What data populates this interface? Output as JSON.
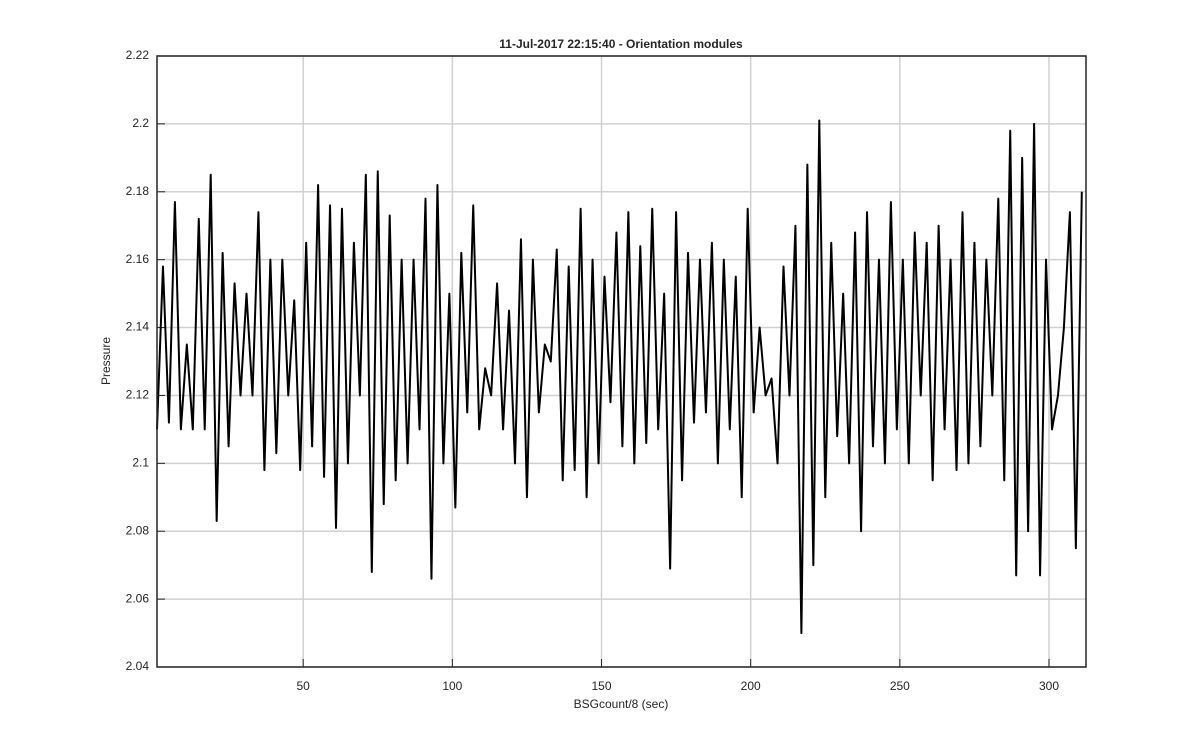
{
  "chart_data": {
    "type": "line",
    "title": "11-Jul-2017 22:15:40 - Orientation modules",
    "xlabel": "BSGcount/8 (sec)",
    "ylabel": "Pressure",
    "x": [
      1,
      3,
      5,
      7,
      9,
      11,
      13,
      15,
      17,
      19,
      21,
      23,
      25,
      27,
      29,
      31,
      33,
      35,
      37,
      39,
      41,
      43,
      45,
      47,
      49,
      51,
      53,
      55,
      57,
      59,
      61,
      63,
      65,
      67,
      69,
      71,
      73,
      75,
      77,
      79,
      81,
      83,
      85,
      87,
      89,
      91,
      93,
      95,
      97,
      99,
      101,
      103,
      105,
      107,
      109,
      111,
      113,
      115,
      117,
      119,
      121,
      123,
      125,
      127,
      129,
      131,
      133,
      135,
      137,
      139,
      141,
      143,
      145,
      147,
      149,
      151,
      153,
      155,
      157,
      159,
      161,
      163,
      165,
      167,
      169,
      171,
      173,
      175,
      177,
      179,
      181,
      183,
      185,
      187,
      189,
      191,
      193,
      195,
      197,
      199,
      201,
      203,
      205,
      207,
      209,
      211,
      213,
      215,
      217,
      219,
      221,
      223,
      225,
      227,
      229,
      231,
      233,
      235,
      237,
      239,
      241,
      243,
      245,
      247,
      249,
      251,
      253,
      255,
      257,
      259,
      261,
      263,
      265,
      267,
      269,
      271,
      273,
      275,
      277,
      279,
      281,
      283,
      285,
      287,
      289,
      291,
      293,
      295,
      297,
      299,
      301,
      303,
      305,
      307,
      309,
      311
    ],
    "values": [
      2.11,
      2.158,
      2.112,
      2.177,
      2.11,
      2.135,
      2.11,
      2.172,
      2.11,
      2.185,
      2.083,
      2.162,
      2.105,
      2.153,
      2.12,
      2.15,
      2.12,
      2.174,
      2.098,
      2.16,
      2.103,
      2.16,
      2.12,
      2.148,
      2.098,
      2.165,
      2.105,
      2.182,
      2.096,
      2.176,
      2.081,
      2.175,
      2.1,
      2.165,
      2.12,
      2.185,
      2.068,
      2.186,
      2.088,
      2.173,
      2.095,
      2.16,
      2.1,
      2.16,
      2.11,
      2.178,
      2.066,
      2.182,
      2.1,
      2.15,
      2.087,
      2.162,
      2.115,
      2.176,
      2.11,
      2.128,
      2.12,
      2.153,
      2.11,
      2.145,
      2.1,
      2.166,
      2.09,
      2.16,
      2.115,
      2.135,
      2.13,
      2.163,
      2.095,
      2.158,
      2.098,
      2.175,
      2.09,
      2.16,
      2.1,
      2.155,
      2.118,
      2.168,
      2.105,
      2.174,
      2.1,
      2.164,
      2.106,
      2.175,
      2.11,
      2.15,
      2.069,
      2.174,
      2.095,
      2.162,
      2.112,
      2.16,
      2.115,
      2.165,
      2.1,
      2.16,
      2.11,
      2.155,
      2.09,
      2.175,
      2.115,
      2.14,
      2.12,
      2.125,
      2.1,
      2.158,
      2.12,
      2.17,
      2.05,
      2.188,
      2.07,
      2.201,
      2.09,
      2.165,
      2.108,
      2.15,
      2.1,
      2.168,
      2.08,
      2.174,
      2.105,
      2.16,
      2.1,
      2.177,
      2.11,
      2.16,
      2.1,
      2.168,
      2.12,
      2.165,
      2.095,
      2.17,
      2.11,
      2.16,
      2.098,
      2.174,
      2.1,
      2.165,
      2.105,
      2.16,
      2.12,
      2.178,
      2.095,
      2.198,
      2.067,
      2.19,
      2.08,
      2.2,
      2.067,
      2.16,
      2.11,
      2.12,
      2.14,
      2.174,
      2.075,
      2.18
    ],
    "color": "#000000",
    "xlim": [
      1,
      312.4
    ],
    "xticks": [
      50,
      100,
      150,
      200,
      250,
      300
    ],
    "ylim": [
      2.04,
      2.22
    ],
    "yticks": [
      2.04,
      2.06,
      2.08,
      2.1,
      2.12,
      2.14,
      2.16,
      2.18,
      2.2,
      2.22
    ],
    "grid": true
  }
}
